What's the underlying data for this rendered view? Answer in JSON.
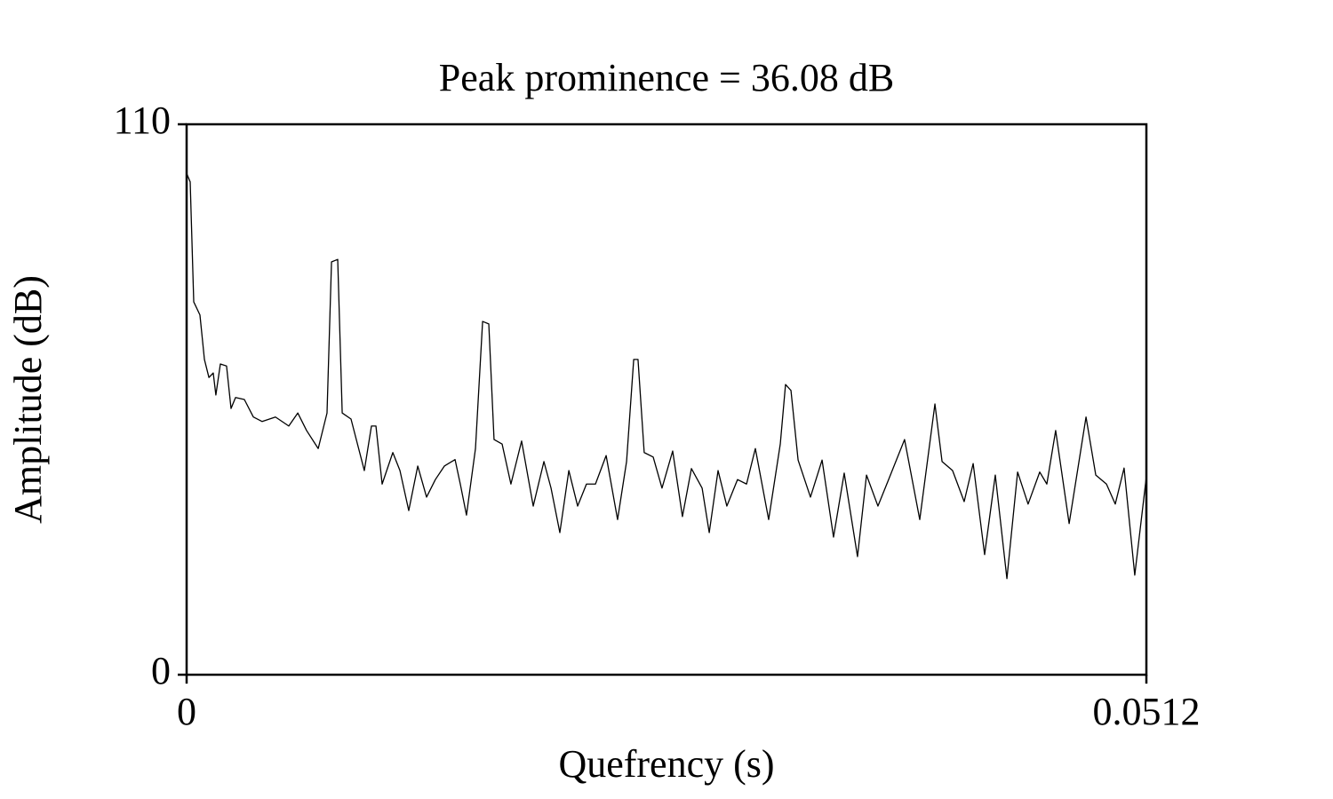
{
  "chart_data": {
    "type": "line",
    "title": "Peak prominence = 36.08 dB",
    "x_label": "Quefrency (s)",
    "y_label": "Amplitude (dB)",
    "xlim": [
      0,
      0.0512
    ],
    "xticks": [
      0,
      0.0512
    ],
    "ylim": [
      0,
      110
    ],
    "yticks": [
      0,
      110
    ],
    "grid": false,
    "x": [
      0,
      0.00019,
      0.00038,
      0.00071,
      0.00095,
      0.00119,
      0.00142,
      0.00156,
      0.0018,
      0.00213,
      0.00237,
      0.00261,
      0.00308,
      0.00356,
      0.00403,
      0.00474,
      0.00545,
      0.00593,
      0.0064,
      0.00702,
      0.00749,
      0.00773,
      0.00806,
      0.0083,
      0.00877,
      0.00948,
      0.00986,
      0.0101,
      0.01043,
      0.011,
      0.01138,
      0.01185,
      0.01233,
      0.0128,
      0.01327,
      0.01375,
      0.01432,
      0.0146,
      0.01493,
      0.01541,
      0.01579,
      0.01612,
      0.0164,
      0.01683,
      0.0173,
      0.01787,
      0.01849,
      0.01906,
      0.01944,
      0.01991,
      0.02039,
      0.02086,
      0.02133,
      0.02181,
      0.02238,
      0.02299,
      0.02347,
      0.02385,
      0.02408,
      0.02441,
      0.02489,
      0.02536,
      0.02593,
      0.02645,
      0.02693,
      0.0275,
      0.02788,
      0.02835,
      0.02882,
      0.02939,
      0.02987,
      0.03034,
      0.03105,
      0.03167,
      0.03195,
      0.03224,
      0.03262,
      0.03328,
      0.0339,
      0.03451,
      0.03508,
      0.03579,
      0.03627,
      0.03688,
      0.03745,
      0.0383,
      0.03911,
      0.03992,
      0.0403,
      0.04086,
      0.04148,
      0.04196,
      0.04257,
      0.04314,
      0.04376,
      0.04433,
      0.04489,
      0.04551,
      0.04589,
      0.04636,
      0.04708,
      0.04798,
      0.0485,
      0.04907,
      0.04954,
      0.05001,
      0.05058,
      0.0512
    ],
    "series": [
      {
        "color": "#000000",
        "values": [
          100.2,
          98.5,
          74.5,
          71.9,
          63,
          59.4,
          60.3,
          55.9,
          62.1,
          61.7,
          53.2,
          55.4,
          55,
          51.5,
          50.6,
          51.5,
          49.7,
          52.3,
          48.8,
          45.2,
          52.3,
          82.5,
          83,
          52.3,
          51.1,
          40.8,
          49.7,
          49.7,
          38.1,
          44.4,
          40.8,
          32.8,
          41.7,
          35.5,
          39,
          41.7,
          43,
          38.1,
          31.9,
          45.2,
          70.6,
          70.1,
          47,
          46.1,
          38.1,
          46.7,
          33.7,
          42.6,
          37.3,
          28.4,
          40.8,
          33.7,
          38.1,
          38.1,
          43.8,
          31,
          42.6,
          63,
          63,
          44.4,
          43.5,
          37.3,
          44.7,
          31.6,
          41.2,
          37.3,
          28.4,
          40.8,
          33.7,
          39,
          38.1,
          45.2,
          31,
          46.1,
          58,
          56.8,
          42.9,
          35.5,
          42.9,
          27.5,
          40.3,
          23.6,
          39.9,
          33.7,
          39,
          47,
          31,
          54.1,
          42.6,
          40.8,
          34.6,
          42.2,
          24,
          39.9,
          19.2,
          40.5,
          34.1,
          40.5,
          38.1,
          48.8,
          30.2,
          51.5,
          39.9,
          38.1,
          34.1,
          41.3,
          19.9,
          39.6
        ]
      }
    ]
  }
}
